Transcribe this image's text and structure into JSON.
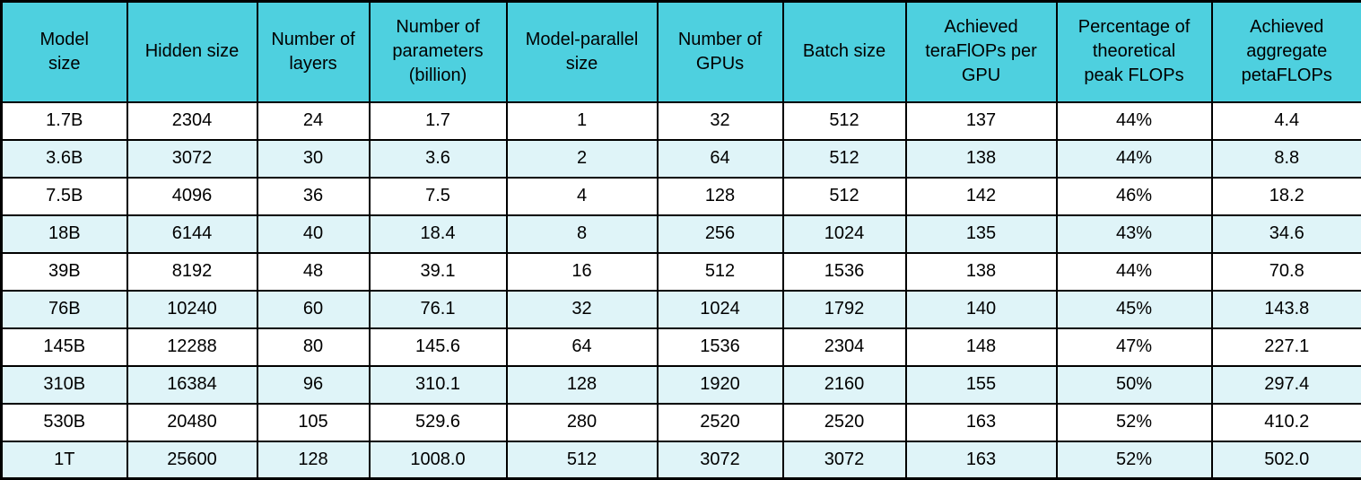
{
  "colors": {
    "header_bg": "#4ED0DF",
    "row_stripe_bg": "#DFF4F8",
    "row_plain_bg": "#FFFFFF",
    "border": "#000000",
    "text": "#000000"
  },
  "table": {
    "header_display": [
      "Model\nsize",
      "Hidden size",
      "Number of\nlayers",
      "Number of\nparameters\n(billion)",
      "Model-parallel\nsize",
      "Number of\nGPUs",
      "Batch size",
      "Achieved\nteraFlOPs per\nGPU",
      "Percentage of\ntheoretical\npeak FLOPs",
      "Achieved\naggregate\npetaFLOPs"
    ]
  },
  "chart_data": {
    "type": "table",
    "columns": [
      "Model size",
      "Hidden size",
      "Number of layers",
      "Number of parameters (billion)",
      "Model-parallel size",
      "Number of GPUs",
      "Batch size",
      "Achieved teraFlOPs per GPU",
      "Percentage of theoretical peak FLOPs",
      "Achieved aggregate petaFLOPs"
    ],
    "rows": [
      [
        "1.7B",
        "2304",
        "24",
        "1.7",
        "1",
        "32",
        "512",
        "137",
        "44%",
        "4.4"
      ],
      [
        "3.6B",
        "3072",
        "30",
        "3.6",
        "2",
        "64",
        "512",
        "138",
        "44%",
        "8.8"
      ],
      [
        "7.5B",
        "4096",
        "36",
        "7.5",
        "4",
        "128",
        "512",
        "142",
        "46%",
        "18.2"
      ],
      [
        "18B",
        "6144",
        "40",
        "18.4",
        "8",
        "256",
        "1024",
        "135",
        "43%",
        "34.6"
      ],
      [
        "39B",
        "8192",
        "48",
        "39.1",
        "16",
        "512",
        "1536",
        "138",
        "44%",
        "70.8"
      ],
      [
        "76B",
        "10240",
        "60",
        "76.1",
        "32",
        "1024",
        "1792",
        "140",
        "45%",
        "143.8"
      ],
      [
        "145B",
        "12288",
        "80",
        "145.6",
        "64",
        "1536",
        "2304",
        "148",
        "47%",
        "227.1"
      ],
      [
        "310B",
        "16384",
        "96",
        "310.1",
        "128",
        "1920",
        "2160",
        "155",
        "50%",
        "297.4"
      ],
      [
        "530B",
        "20480",
        "105",
        "529.6",
        "280",
        "2520",
        "2520",
        "163",
        "52%",
        "410.2"
      ],
      [
        "1T",
        "25600",
        "128",
        "1008.0",
        "512",
        "3072",
        "3072",
        "163",
        "52%",
        "502.0"
      ]
    ]
  }
}
